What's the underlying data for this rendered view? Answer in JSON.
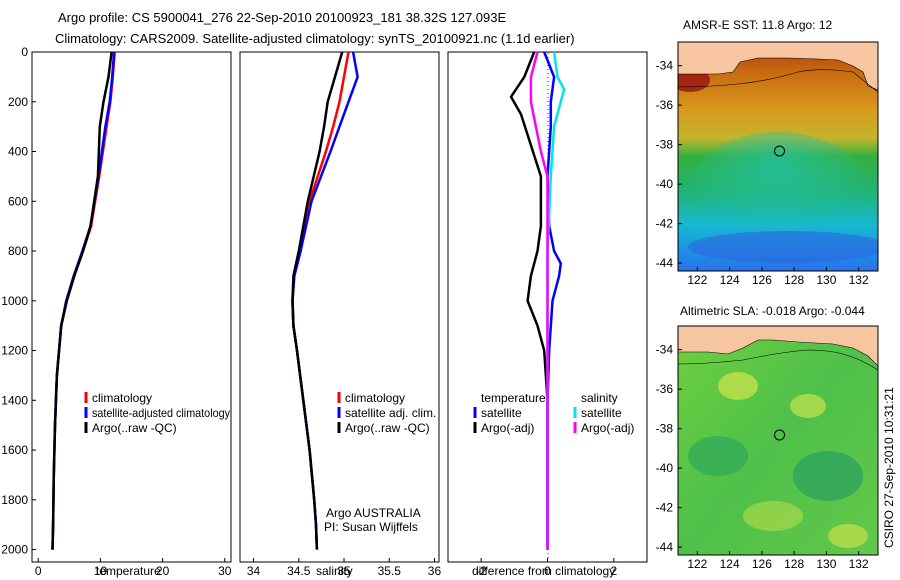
{
  "header": {
    "line1": "Argo profile: CS 5900041_276 22-Sep-2010 20100923_181 38.32S 127.093E",
    "line2": "Climatology: CARS2009. Satellite-adjusted climatology: synTS_20100921.nc (1.1d earlier)"
  },
  "colors": {
    "climatology": "#ff0000",
    "satellite": "#0000ff",
    "argo": "#000000",
    "salinity_sat": "#00e5e5",
    "salinity_argo": "#ff00ff",
    "land": "#f7c59f"
  },
  "chart_data": [
    {
      "type": "line",
      "id": "temperature",
      "xlabel": "temperature",
      "xlim": [
        -1,
        31
      ],
      "ylim": [
        2050,
        0
      ],
      "xticks": [
        0,
        10,
        20,
        30
      ],
      "yticks": [
        0,
        200,
        400,
        600,
        800,
        1000,
        1200,
        1400,
        1600,
        1800,
        2000
      ],
      "legend": [
        "climatology",
        "satellite-adjusted climatology",
        "Argo(..raw -QC)"
      ],
      "series": [
        {
          "name": "climatology",
          "color": "#ff0000",
          "x": [
            12.3,
            12.0,
            11.6,
            11.0,
            9.8,
            8.5,
            7.2,
            5.8,
            4.6,
            3.7,
            3.0,
            2.7,
            2.5,
            2.4,
            2.3
          ],
          "y": [
            0,
            100,
            200,
            300,
            500,
            700,
            800,
            900,
            1000,
            1100,
            1300,
            1500,
            1700,
            1900,
            2000
          ]
        },
        {
          "name": "satellite-adjusted climatology",
          "color": "#0000ff",
          "x": [
            12.2,
            11.9,
            11.5,
            10.8,
            9.7,
            8.4,
            7.1,
            5.7,
            4.5,
            3.7,
            3.0,
            2.7,
            2.5,
            2.4,
            2.3
          ],
          "y": [
            0,
            100,
            200,
            300,
            500,
            700,
            800,
            900,
            1000,
            1100,
            1300,
            1500,
            1700,
            1900,
            2000
          ]
        },
        {
          "name": "Argo(..raw -QC)",
          "color": "#000000",
          "x": [
            11.8,
            11.3,
            10.5,
            9.9,
            9.6,
            8.4,
            7.2,
            5.8,
            4.6,
            3.7,
            3.0,
            2.7,
            2.5,
            2.4,
            2.3
          ],
          "y": [
            0,
            100,
            200,
            300,
            500,
            700,
            800,
            900,
            1000,
            1100,
            1300,
            1500,
            1700,
            1900,
            2000
          ]
        }
      ]
    },
    {
      "type": "line",
      "id": "salinity",
      "xlabel": "salinity",
      "xlim": [
        33.85,
        36.05
      ],
      "ylim": [
        2050,
        0
      ],
      "xticks": [
        34,
        34.5,
        35,
        35.5,
        36
      ],
      "xticklabels": [
        "34",
        "34.5",
        "35",
        "35.5",
        "36"
      ],
      "legend": [
        "climatology",
        "satellite adj. clim.",
        "Argo(..raw -QC)"
      ],
      "annotation": [
        "Argo AUSTRALIA",
        "PI: Susan Wijffels"
      ],
      "series": [
        {
          "name": "climatology",
          "color": "#ff0000",
          "x": [
            35.05,
            35.0,
            34.95,
            34.88,
            34.8,
            34.62,
            34.52,
            34.45,
            34.43,
            34.44,
            34.48,
            34.55,
            34.62,
            34.67,
            34.69,
            34.7
          ],
          "y": [
            0,
            100,
            200,
            300,
            400,
            600,
            800,
            900,
            1000,
            1100,
            1200,
            1400,
            1600,
            1800,
            1900,
            2000
          ]
        },
        {
          "name": "satellite adj. clim.",
          "color": "#0000ff",
          "x": [
            35.1,
            35.15,
            35.05,
            34.95,
            34.85,
            34.64,
            34.52,
            34.45,
            34.43,
            34.44,
            34.48,
            34.55,
            34.62,
            34.67,
            34.69,
            34.7
          ],
          "y": [
            0,
            100,
            200,
            300,
            400,
            600,
            800,
            900,
            1000,
            1100,
            1200,
            1400,
            1600,
            1800,
            1900,
            2000
          ]
        },
        {
          "name": "Argo(..raw -QC)",
          "color": "#000000",
          "x": [
            34.98,
            34.9,
            34.82,
            34.78,
            34.73,
            34.6,
            34.5,
            34.44,
            34.43,
            34.44,
            34.48,
            34.55,
            34.62,
            34.67,
            34.69,
            34.7
          ],
          "y": [
            0,
            100,
            200,
            300,
            400,
            600,
            800,
            900,
            1000,
            1100,
            1200,
            1400,
            1600,
            1800,
            1900,
            2000
          ]
        }
      ]
    },
    {
      "type": "line",
      "id": "difference",
      "xlabel": "difference from climatology",
      "xlim": [
        -3,
        3
      ],
      "ylim": [
        2050,
        0
      ],
      "xticks": [
        -2,
        0,
        2
      ],
      "legend_temp_title": "temperature",
      "legend_sal_title": "salinity",
      "legend_items": [
        "satellite",
        "Argo(-adj)",
        "satellite",
        "Argo(-adj)"
      ],
      "series": [
        {
          "name": "temp satellite",
          "color": "#0000ff",
          "x": [
            -0.1,
            0.2,
            0.1,
            0.1,
            0.0,
            0.05,
            0.2,
            0.4,
            0.35,
            0.15,
            0.05,
            0.0,
            0.0,
            0.0
          ],
          "y": [
            0,
            100,
            200,
            300,
            500,
            700,
            800,
            850,
            900,
            1000,
            1200,
            1400,
            1700,
            2000
          ]
        },
        {
          "name": "temp Argo(-adj)",
          "color": "#000000",
          "x": [
            -0.4,
            -0.7,
            -1.1,
            -0.8,
            -0.2,
            -0.2,
            -0.3,
            -0.5,
            -0.6,
            -0.3,
            -0.1,
            0.0,
            0.0,
            0.0
          ],
          "y": [
            0,
            100,
            180,
            250,
            500,
            700,
            800,
            900,
            1000,
            1100,
            1200,
            1400,
            1700,
            2000
          ]
        },
        {
          "name": "sal satellite",
          "color": "#00e5e5",
          "x": [
            0.2,
            0.3,
            0.5,
            0.2,
            0.1,
            0.0,
            0.0,
            0.0,
            0.0
          ],
          "y": [
            0,
            100,
            150,
            300,
            500,
            800,
            1200,
            1600,
            2000
          ]
        },
        {
          "name": "sal Argo(-adj)",
          "color": "#ff00ff",
          "x": [
            -0.3,
            -0.5,
            -0.5,
            -0.2,
            0.0,
            0.0,
            0.0,
            0.0
          ],
          "y": [
            0,
            100,
            200,
            400,
            500,
            800,
            1200,
            2000
          ]
        }
      ]
    },
    {
      "type": "heatmap",
      "id": "sst_map",
      "title": "AMSR-E SST: 11.8 Argo: 12",
      "xlim": [
        120.8,
        133.2
      ],
      "ylim": [
        -44.4,
        -32.8
      ],
      "xticks": [
        122,
        124,
        126,
        128,
        130,
        132
      ],
      "yticks": [
        -34,
        -36,
        -38,
        -40,
        -42,
        -44
      ],
      "marker": {
        "lon": 127.093,
        "lat": -38.32
      }
    },
    {
      "type": "heatmap",
      "id": "sla_map",
      "title": "Altimetric SLA: -0.018 Argo: -0.044",
      "xlim": [
        120.8,
        133.2
      ],
      "ylim": [
        -44.4,
        -32.8
      ],
      "xticks": [
        122,
        124,
        126,
        128,
        130,
        132
      ],
      "yticks": [
        -34,
        -36,
        -38,
        -40,
        -42,
        -44
      ],
      "marker": {
        "lon": 127.093,
        "lat": -38.32
      }
    }
  ],
  "side_label": "CSIRO 27-Sep-2010 10:31:21"
}
